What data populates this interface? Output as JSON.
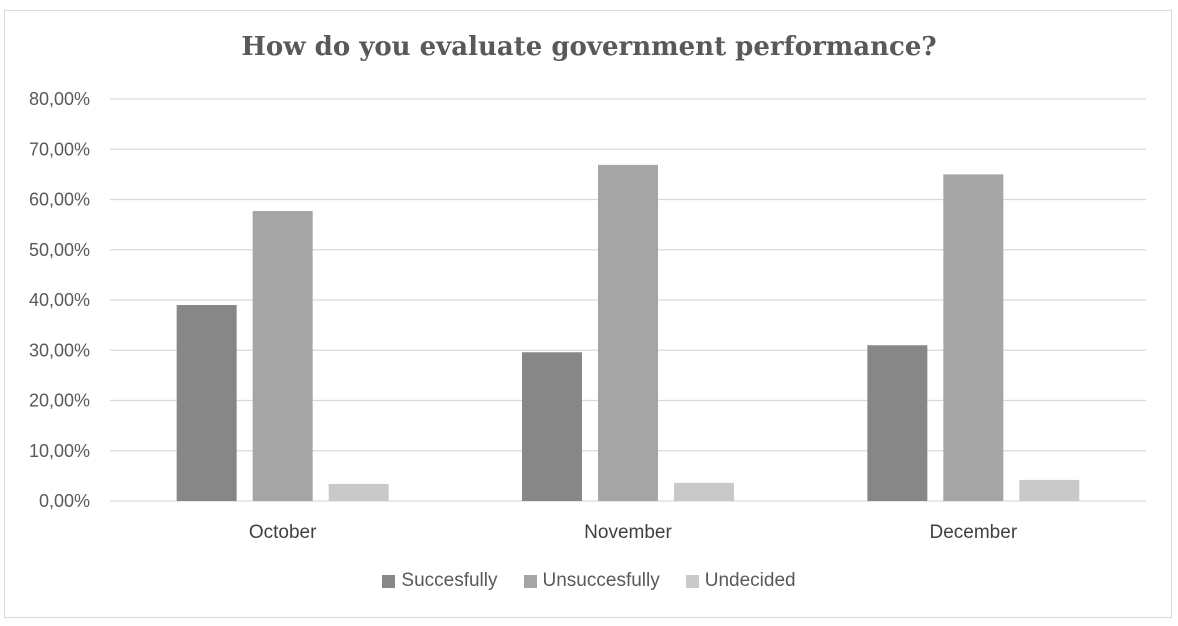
{
  "chart_data": {
    "type": "bar",
    "title": "How do you evaluate government performance?",
    "categories": [
      "October",
      "November",
      "December"
    ],
    "series": [
      {
        "name": "Succesfully",
        "color": "#878787",
        "values": [
          39.0,
          29.6,
          31.0
        ]
      },
      {
        "name": "Unsuccesfully",
        "color": "#a5a5a5",
        "values": [
          57.7,
          66.9,
          65.0
        ]
      },
      {
        "name": "Undecided",
        "color": "#c9c9c9",
        "values": [
          3.4,
          3.6,
          4.2
        ]
      }
    ],
    "ylim": [
      0,
      80
    ],
    "yticks": [
      {
        "value": 0,
        "label": "0,00%"
      },
      {
        "value": 10,
        "label": "10,00%"
      },
      {
        "value": 20,
        "label": "20,00%"
      },
      {
        "value": 30,
        "label": "30,00%"
      },
      {
        "value": 40,
        "label": "40,00%"
      },
      {
        "value": 50,
        "label": "50,00%"
      },
      {
        "value": 60,
        "label": "60,00%"
      },
      {
        "value": 70,
        "label": "70,00%"
      },
      {
        "value": 80,
        "label": "80,00%"
      }
    ],
    "grid": true,
    "legend_position": "bottom"
  }
}
